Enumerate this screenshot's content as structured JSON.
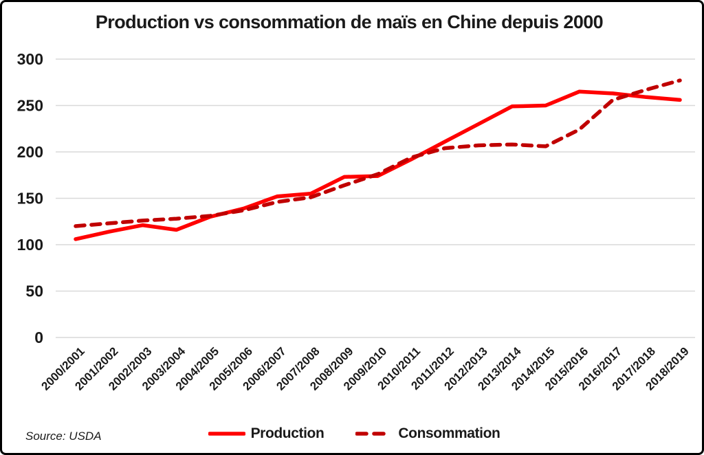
{
  "chart_data": {
    "type": "line",
    "title": "Production vs consommation de maïs en Chine depuis 2000",
    "source_note": "Source: USDA",
    "categories": [
      "2000/2001",
      "2001/2002",
      "2002/2003",
      "2003/2004",
      "2004/2005",
      "2005/2006",
      "2006/2007",
      "2007/2008",
      "2008/2009",
      "2009/2010",
      "2010/2011",
      "2011/2012",
      "2012/2013",
      "2013/2014",
      "2014/2015",
      "2015/2016",
      "2016/2017",
      "2017/2018",
      "2018/2019"
    ],
    "series": [
      {
        "name": "Production",
        "style": "solid",
        "color": "#ff0000",
        "values": [
          106,
          114,
          121,
          116,
          130,
          139,
          152,
          155,
          173,
          174,
          192,
          211,
          230,
          249,
          250,
          265,
          263,
          259,
          256
        ]
      },
      {
        "name": "Consommation",
        "style": "dashed",
        "color": "#c00000",
        "values": [
          120,
          123,
          126,
          128,
          131,
          137,
          146,
          151,
          164,
          176,
          194,
          204,
          207,
          208,
          206,
          224,
          256,
          267,
          277
        ]
      }
    ],
    "ylim": [
      0,
      300
    ],
    "yticks": [
      0,
      50,
      100,
      150,
      200,
      250,
      300
    ],
    "grid": "horizontal",
    "gridline_color": "#d9d9d9",
    "legend_position": "bottom-center"
  }
}
